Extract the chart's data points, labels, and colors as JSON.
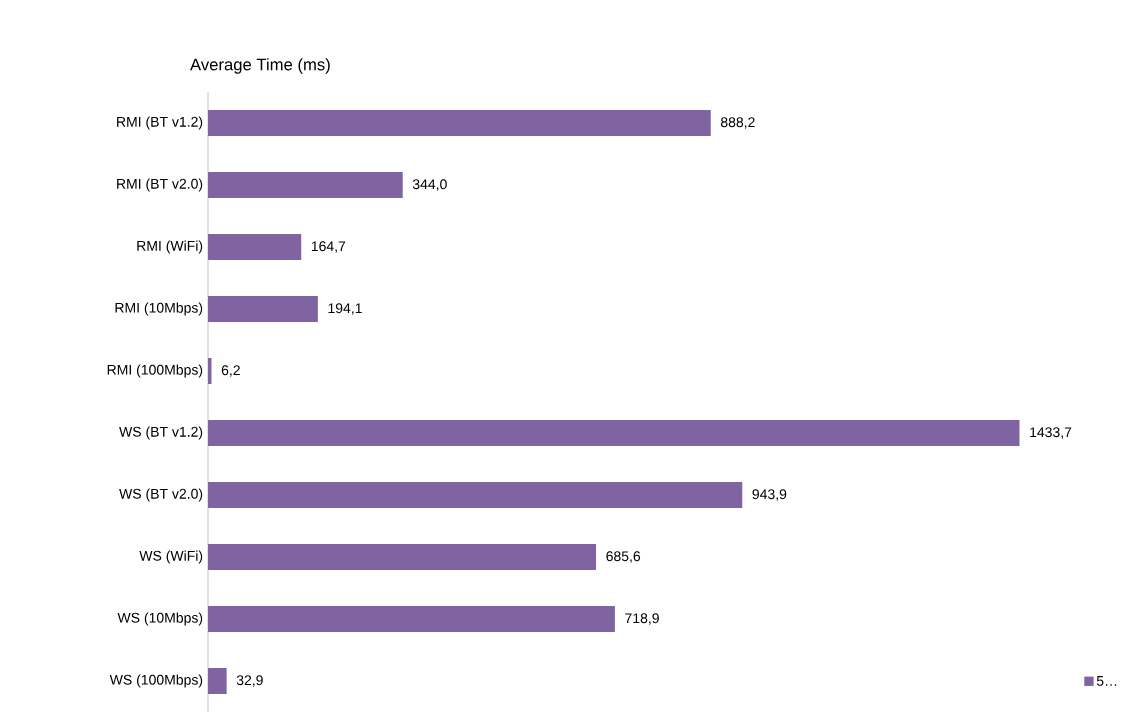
{
  "chart_data": {
    "type": "bar",
    "orientation": "horizontal",
    "title": "Average Time (ms)",
    "categories": [
      "RMI (BT v1.2)",
      "RMI (BT v2.0)",
      "RMI (WiFi)",
      "RMI (10Mbps)",
      "RMI (100Mbps)",
      "WS (BT v1.2)",
      "WS (BT v2.0)",
      "WS (WiFi)",
      "WS (10Mbps)",
      "WS (100Mbps)"
    ],
    "series": [
      {
        "name": "5…",
        "color": "#8064a2",
        "values": [
          888.2,
          344.0,
          164.7,
          194.1,
          6.2,
          1433.7,
          943.9,
          685.6,
          718.9,
          32.9
        ],
        "value_labels": [
          "888,2",
          "344,0",
          "164,7",
          "194,1",
          "6,2",
          "1433,7",
          "943,9",
          "685,6",
          "718,9",
          "32,9"
        ]
      }
    ],
    "legend": "bottom right",
    "grid": false
  }
}
